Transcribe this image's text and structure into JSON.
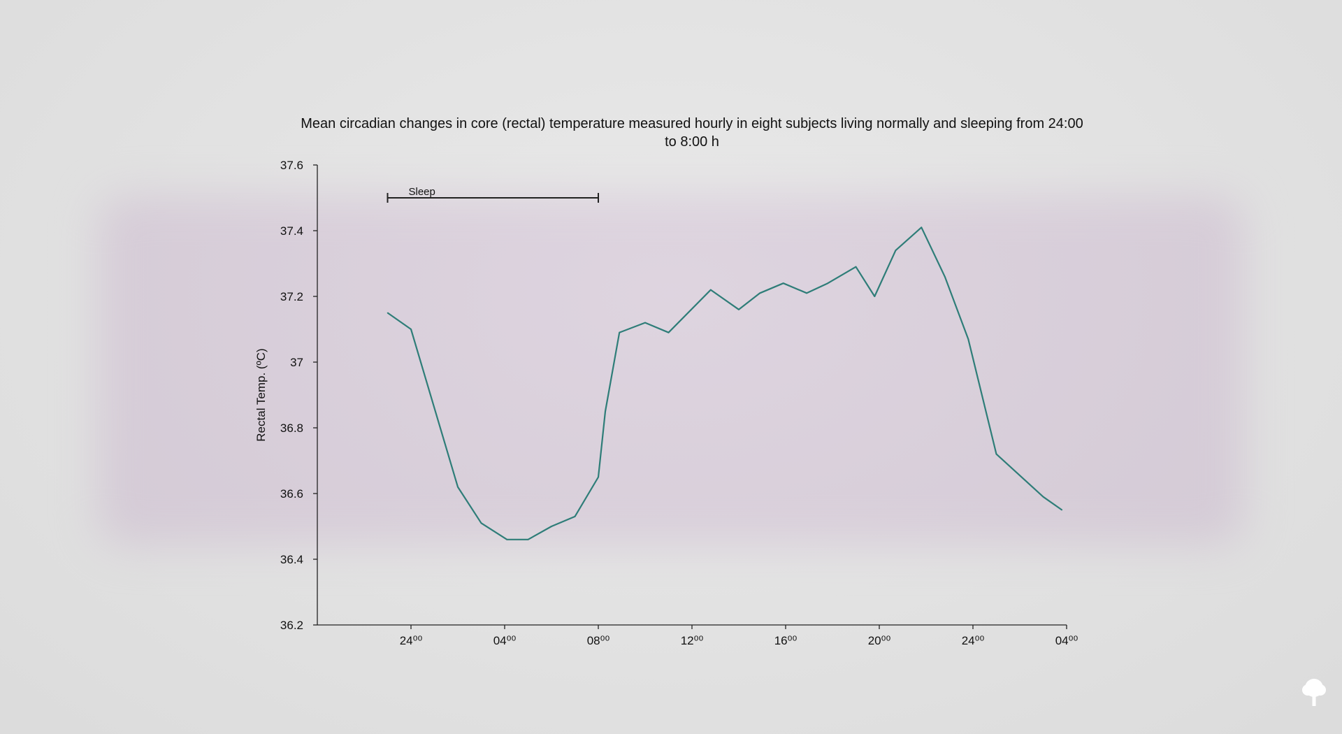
{
  "chart_data": {
    "type": "line",
    "title": "Mean circadian changes in core (rectal) temperature measured hourly in eight subjects living normally and sleeping from 24:00 to 8:00 h",
    "xlabel": "",
    "ylabel": "Rectal Temp. (ºC)",
    "xlim": [
      -4,
      28
    ],
    "ylim": [
      36.2,
      37.6
    ],
    "x_ticks": [
      0,
      4,
      8,
      12,
      16,
      20,
      24,
      28
    ],
    "x_tick_labels": [
      "24⁰⁰",
      "04⁰⁰",
      "08⁰⁰",
      "12⁰⁰",
      "16⁰⁰",
      "20⁰⁰",
      "24⁰⁰",
      "04⁰⁰"
    ],
    "y_ticks": [
      36.2,
      36.4,
      36.6,
      36.8,
      37,
      37.2,
      37.4,
      37.6
    ],
    "y_tick_labels": [
      "36.2",
      "36.4",
      "36.6",
      "36.8",
      "37",
      "37.2",
      "37.4",
      "37.6"
    ],
    "grid": false,
    "annotations": [
      {
        "text": "Sleep",
        "x_start": -1,
        "x_end": 8,
        "y": 37.5
      }
    ],
    "series": [
      {
        "name": "Rectal temperature",
        "color": "#2e7d78",
        "x": [
          -1,
          0,
          2,
          3,
          4.1,
          5,
          6,
          7,
          8,
          8.3,
          8.9,
          10,
          11,
          12.8,
          14,
          14.9,
          15.9,
          16.9,
          17.8,
          19,
          19.8,
          20.7,
          21.8,
          22.8,
          23.8,
          25,
          27,
          27.8
        ],
        "values": [
          37.15,
          37.1,
          36.62,
          36.51,
          36.46,
          36.46,
          36.5,
          36.53,
          36.65,
          36.85,
          37.09,
          37.12,
          37.09,
          37.22,
          37.16,
          37.21,
          37.24,
          37.21,
          37.24,
          37.29,
          37.2,
          37.34,
          37.41,
          37.26,
          37.07,
          36.72,
          36.59,
          36.55
        ]
      }
    ]
  }
}
